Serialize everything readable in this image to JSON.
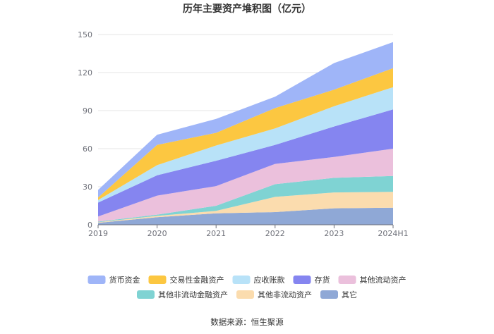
{
  "chart_data": {
    "type": "area",
    "stacked": true,
    "title": "历年主要资产堆积图（亿元）",
    "xlabel": "",
    "ylabel": "",
    "categories": [
      "2019",
      "2020",
      "2021",
      "2022",
      "2023",
      "2024H1"
    ],
    "y_ticks": [
      "0",
      "30",
      "60",
      "90",
      "120",
      "150"
    ],
    "ylim": [
      0,
      150
    ],
    "grid": true,
    "legend_position": "bottom",
    "series": [
      {
        "name": "其它",
        "color": "#8fa8d6",
        "values": [
          1.5,
          6,
          9,
          10,
          13,
          13.5
        ]
      },
      {
        "name": "其他非流动资产",
        "color": "#fbdcae",
        "values": [
          0.5,
          1,
          2,
          12,
          12.5,
          12.5
        ]
      },
      {
        "name": "其他非流动金融资产",
        "color": "#7fd3d3",
        "values": [
          0.5,
          1,
          4,
          10,
          11.5,
          12.5
        ]
      },
      {
        "name": "其他流动资产",
        "color": "#ebc0dc",
        "values": [
          4,
          15,
          15.5,
          16,
          16.5,
          21.5
        ]
      },
      {
        "name": "存货",
        "color": "#8585f0",
        "values": [
          11,
          16,
          20,
          15,
          24,
          31
        ]
      },
      {
        "name": "应收账款",
        "color": "#b8e2f8",
        "values": [
          2,
          8,
          12,
          13,
          16,
          17.5
        ]
      },
      {
        "name": "交易性金融资产",
        "color": "#fcc741",
        "values": [
          2,
          16,
          10,
          16,
          13,
          15
        ]
      },
      {
        "name": "货币资金",
        "color": "#9fb5f8",
        "values": [
          6,
          8,
          11,
          9,
          21,
          20.5
        ]
      }
    ],
    "legend_order": [
      "货币资金",
      "交易性金融资产",
      "应收账款",
      "存货",
      "其他流动资产",
      "其他非流动金融资产",
      "其他非流动资产",
      "其它"
    ],
    "source": "数据来源：恒生聚源"
  }
}
